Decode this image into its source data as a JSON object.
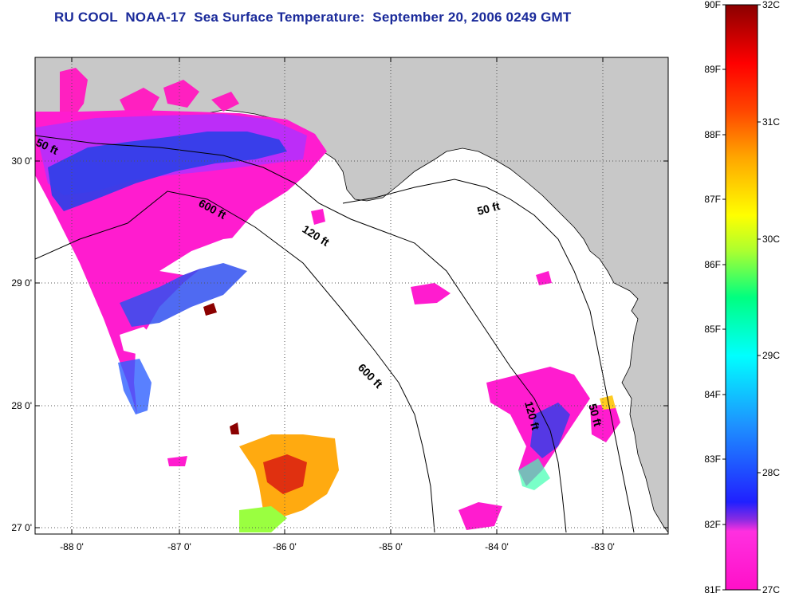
{
  "title": "RU COOL  NOAA-17  Sea Surface Temperature:  September 20, 2006 0249 GMT",
  "map": {
    "land_color": "#c8c8c8",
    "water_color": "#ffffff",
    "lon_ticks": [
      "-88 0'",
      "-87 0'",
      "-86 0'",
      "-85 0'",
      "-84 0'",
      "-83 0'"
    ],
    "lat_ticks": [
      "30 0'",
      "29 0'",
      "28 0'",
      "27 0'"
    ],
    "contour_labels": [
      "50 ft",
      "600 ft",
      "120 ft",
      "50 ft",
      "600 ft",
      "120 ft",
      "50 ft"
    ]
  },
  "colorbar": {
    "fahrenheit": [
      "90F",
      "89F",
      "88F",
      "87F",
      "86F",
      "85F",
      "84F",
      "83F",
      "82F",
      "81F"
    ],
    "celsius": [
      "32C",
      "31C",
      "30C",
      "29C",
      "28C",
      "27C"
    ],
    "colors": [
      "#ff00ff",
      "#ff00cc",
      "#8a2be2",
      "#0000ff",
      "#1e90ff",
      "#00ffff",
      "#00ff80",
      "#adff2f",
      "#ffff00",
      "#ffa500",
      "#ff4500",
      "#ff0000",
      "#8b0000"
    ]
  }
}
